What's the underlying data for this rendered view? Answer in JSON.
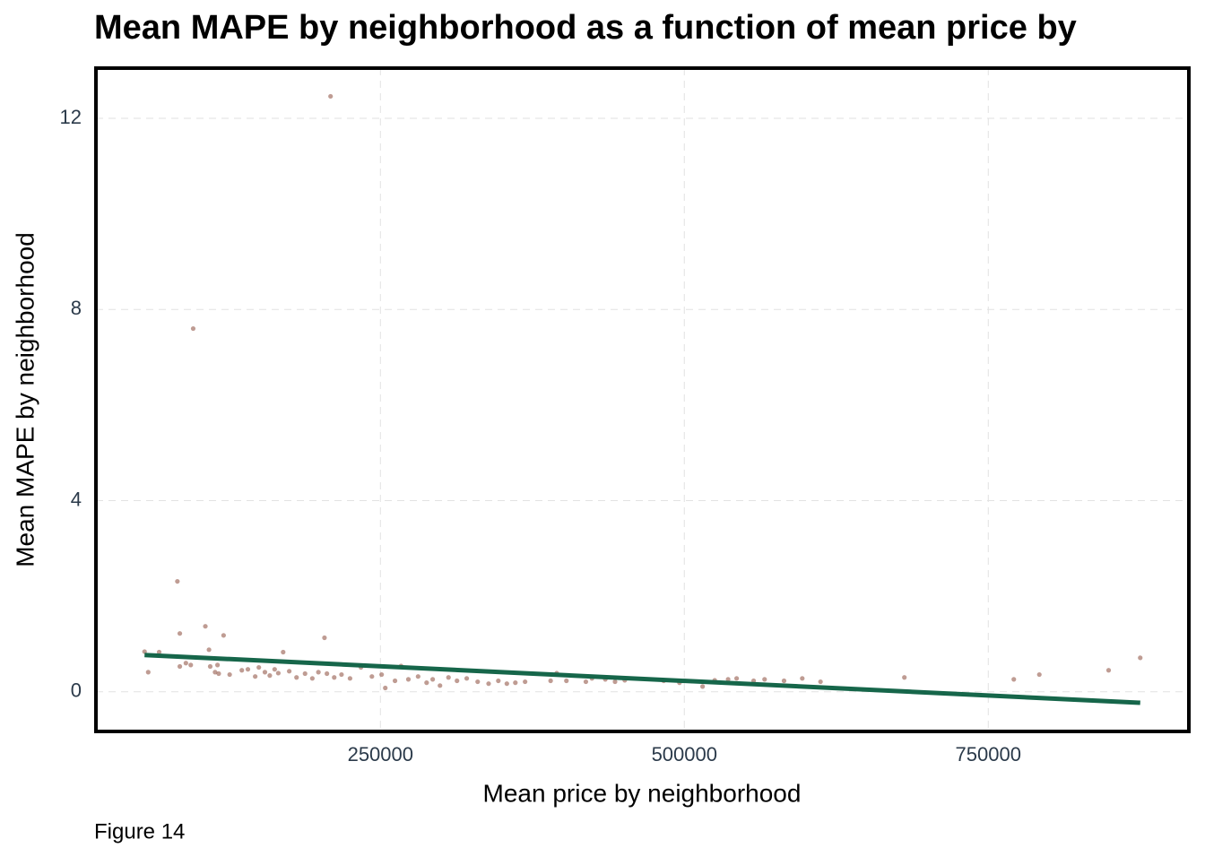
{
  "chart_data": {
    "type": "scatter",
    "title": "Mean MAPE by neighborhood as a function of mean price by",
    "x_label": "Mean price by neighborhood",
    "y_label": "Mean MAPE by neighborhood",
    "caption": "Figure 14",
    "xlim": [
      16000,
      915000
    ],
    "ylim": [
      -0.83,
      13.05
    ],
    "xticks": [
      250000,
      500000,
      750000
    ],
    "yticks": [
      0,
      4,
      8,
      12
    ],
    "grid": true,
    "series": [
      {
        "kind": "points",
        "color": "#8b4a3a",
        "x": [
          56000,
          59000,
          68000,
          83000,
          85000,
          85000,
          90000,
          94000,
          96000,
          106000,
          109000,
          110000,
          114000,
          116000,
          117000,
          121000,
          126000,
          136000,
          141000,
          147000,
          150000,
          155000,
          159000,
          163000,
          166000,
          170000,
          175000,
          181000,
          188000,
          194000,
          199000,
          204000,
          206000,
          209000,
          212000,
          218000,
          225000,
          234000,
          243000,
          251000,
          254000,
          262000,
          267000,
          273000,
          281000,
          288000,
          293000,
          299000,
          306000,
          313000,
          321000,
          330000,
          339000,
          347000,
          354000,
          361000,
          369000,
          390000,
          395000,
          403000,
          419000,
          424000,
          435000,
          443000,
          451000,
          483000,
          496000,
          515000,
          525000,
          536000,
          543000,
          557000,
          566000,
          582000,
          597000,
          612000,
          681000,
          771000,
          792000,
          849000,
          875000
        ],
        "y": [
          0.84,
          0.41,
          0.83,
          2.31,
          1.22,
          0.53,
          0.6,
          0.56,
          7.6,
          1.37,
          0.88,
          0.53,
          0.41,
          0.56,
          0.38,
          1.18,
          0.36,
          0.45,
          0.47,
          0.32,
          0.51,
          0.41,
          0.34,
          0.47,
          0.39,
          0.83,
          0.43,
          0.3,
          0.38,
          0.28,
          0.41,
          1.13,
          0.38,
          12.46,
          0.3,
          0.36,
          0.28,
          0.51,
          0.32,
          0.36,
          0.08,
          0.23,
          0.54,
          0.26,
          0.32,
          0.19,
          0.26,
          0.13,
          0.3,
          0.23,
          0.28,
          0.21,
          0.17,
          0.23,
          0.17,
          0.19,
          0.21,
          0.23,
          0.39,
          0.23,
          0.21,
          0.28,
          0.26,
          0.21,
          0.24,
          0.23,
          0.19,
          0.11,
          0.24,
          0.26,
          0.28,
          0.23,
          0.26,
          0.23,
          0.28,
          0.21,
          0.3,
          0.26,
          0.36,
          0.45,
          0.71
        ]
      },
      {
        "kind": "line",
        "color": "#16664a",
        "x": [
          56000,
          875000
        ],
        "y": [
          0.77,
          -0.23
        ]
      }
    ]
  }
}
